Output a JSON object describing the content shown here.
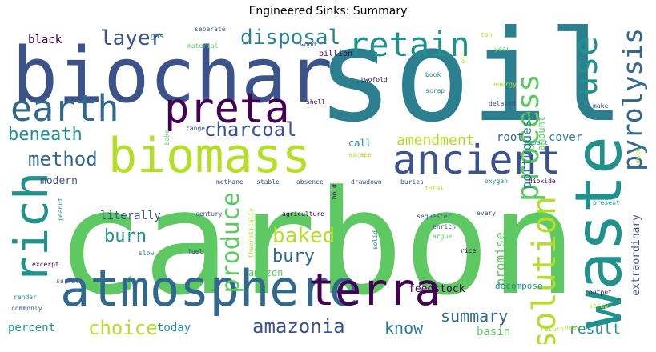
{
  "title": "Engineered Sinks: Summary",
  "words": [
    {
      "text": "carbon",
      "color": "#5ec962"
    },
    {
      "text": "soil",
      "color": "#2c7f8e"
    },
    {
      "text": "biochar",
      "color": "#3b528b"
    },
    {
      "text": "atmosphere",
      "color": "#31688e"
    },
    {
      "text": "waste",
      "color": "#21918c"
    },
    {
      "text": "biomass",
      "color": "#b5de2b"
    },
    {
      "text": "preta",
      "color": "#440154"
    },
    {
      "text": "terra",
      "color": "#440154"
    },
    {
      "text": "earth",
      "color": "#31688e"
    },
    {
      "text": "ancient",
      "color": "#3b528b"
    },
    {
      "text": "retain",
      "color": "#21918c"
    },
    {
      "text": "rich",
      "color": "#21918c"
    },
    {
      "text": "use",
      "color": "#21918c"
    },
    {
      "text": "solution",
      "color": "#b5de2b"
    },
    {
      "text": "process",
      "color": "#5ec962"
    },
    {
      "text": "pyrolysis",
      "color": "#31688e"
    },
    {
      "text": "disposal",
      "color": "#2c7f8e"
    },
    {
      "text": "layer",
      "color": "#3b528b"
    },
    {
      "text": "charcoal",
      "color": "#3b528b"
    },
    {
      "text": "beneath",
      "color": "#21918c"
    },
    {
      "text": "method",
      "color": "#31688e"
    },
    {
      "text": "amendment",
      "color": "#b5de2b"
    },
    {
      "text": "produce",
      "color": "#5ec962"
    },
    {
      "text": "baked",
      "color": "#b5de2b"
    },
    {
      "text": "burn",
      "color": "#21918c"
    },
    {
      "text": "bury",
      "color": "#31688e"
    },
    {
      "text": "amazonia",
      "color": "#3b528b"
    },
    {
      "text": "choice",
      "color": "#b5de2b"
    },
    {
      "text": "summary",
      "color": "#31688e"
    },
    {
      "text": "know",
      "color": "#2c7f8e"
    },
    {
      "text": "result",
      "color": "#21918c"
    },
    {
      "text": "portuguese",
      "color": "#2c7f8e"
    },
    {
      "text": "promise",
      "color": "#5ec962"
    },
    {
      "text": "extraordinary",
      "color": "#3b528b"
    },
    {
      "text": "root",
      "color": "#31688e"
    },
    {
      "text": "cover",
      "color": "#2c7f8e"
    },
    {
      "text": "call",
      "color": "#21918c"
    },
    {
      "text": "modern",
      "color": "#3b528b"
    },
    {
      "text": "literally",
      "color": "#3b528b"
    },
    {
      "text": "amount",
      "color": "#5ec962"
    },
    {
      "text": "black",
      "color": "#440154"
    },
    {
      "text": "today",
      "color": "#21918c"
    },
    {
      "text": "percent",
      "color": "#21918c"
    },
    {
      "text": "amazon",
      "color": "#5ec962"
    },
    {
      "text": "basin",
      "color": "#5ec962"
    },
    {
      "text": "feedstock",
      "color": "#440154"
    },
    {
      "text": "decompose",
      "color": "#21918c"
    },
    {
      "text": "gas",
      "color": "#2c7f8e"
    },
    {
      "text": "separate",
      "color": "#3b528b"
    },
    {
      "text": "material",
      "color": "#5ec962"
    },
    {
      "text": "wood",
      "color": "#3b528b"
    },
    {
      "text": "billion",
      "color": "#440154"
    },
    {
      "text": "ton",
      "color": "#b5de2b"
    },
    {
      "text": "oil",
      "color": "#b5de2b"
    },
    {
      "text": "year",
      "color": "#5ec962"
    },
    {
      "text": "book",
      "color": "#2c7f8e"
    },
    {
      "text": "twofold",
      "color": "#440154"
    },
    {
      "text": "energy",
      "color": "#b5de2b"
    },
    {
      "text": "scrap",
      "color": "#21918c"
    },
    {
      "text": "shell",
      "color": "#440154"
    },
    {
      "text": "delayed",
      "color": "#3b528b"
    },
    {
      "text": "make",
      "color": "#3b528b"
    },
    {
      "text": "range",
      "color": "#3b528b"
    },
    {
      "text": "bake",
      "color": "#5ec962"
    },
    {
      "text": "expert",
      "color": "#21918c"
    },
    {
      "text": "escape",
      "color": "#b5de2b"
    },
    {
      "text": "much",
      "color": "#b5de2b"
    },
    {
      "text": "methane",
      "color": "#3b528b"
    },
    {
      "text": "stable",
      "color": "#3b528b"
    },
    {
      "text": "absence",
      "color": "#3b528b"
    },
    {
      "text": "drawdown",
      "color": "#3b528b"
    },
    {
      "text": "buries",
      "color": "#3b528b"
    },
    {
      "text": "oxygen",
      "color": "#2c7f8e"
    },
    {
      "text": "dioxide",
      "color": "#440154"
    },
    {
      "text": "hold",
      "color": "#440154"
    },
    {
      "text": "total",
      "color": "#b5de2b"
    },
    {
      "text": "peanut",
      "color": "#2c7f8e"
    },
    {
      "text": "century",
      "color": "#3b528b"
    },
    {
      "text": "agriculture",
      "color": "#440154"
    },
    {
      "text": "every",
      "color": "#3b528b"
    },
    {
      "text": "present",
      "color": "#21918c"
    },
    {
      "text": "theoretically",
      "color": "#b5de2b"
    },
    {
      "text": "sequester",
      "color": "#3b528b"
    },
    {
      "text": "enrich",
      "color": "#3b528b"
    },
    {
      "text": "argue",
      "color": "#5ec962"
    },
    {
      "text": "fuel",
      "color": "#3b528b"
    },
    {
      "text": "solid",
      "color": "#21918c"
    },
    {
      "text": "rice",
      "color": "#440154"
    },
    {
      "text": "excerpt",
      "color": "#440154"
    },
    {
      "text": "slow",
      "color": "#2c7f8e"
    },
    {
      "text": "surface",
      "color": "#3b528b"
    },
    {
      "text": "render",
      "color": "#21918c"
    },
    {
      "text": "commonly",
      "color": "#3b528b"
    },
    {
      "text": "output",
      "color": "#440154"
    },
    {
      "text": "straw",
      "color": "#b5de2b"
    },
    {
      "text": "return",
      "color": "#b5de2b"
    },
    {
      "text": "near",
      "color": "#b5de2b"
    }
  ]
}
